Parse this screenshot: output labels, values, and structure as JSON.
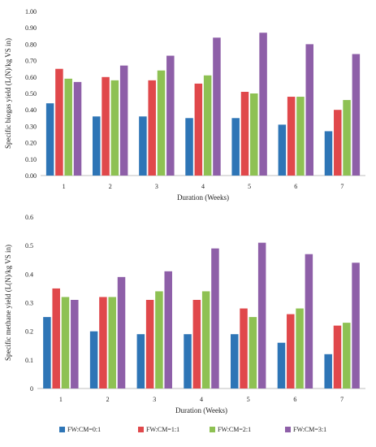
{
  "colors": [
    "#2e75b6",
    "#e0484b",
    "#8ec153",
    "#8e5fa8"
  ],
  "legend": {
    "position": "bottom",
    "entries": [
      "FW:CM=0:1",
      "FW:CM=1:1",
      "FW:CM=2:1",
      "FW:CM=3:1"
    ]
  },
  "chart_data": [
    {
      "type": "bar",
      "xlabel": "Duration (Weeks)",
      "ylabel": "Specific biogas yield (L(N)/kg VS in)",
      "ylim": [
        0,
        1.0
      ],
      "yticks": [
        "0.00",
        "0.10",
        "0.20",
        "0.30",
        "0.40",
        "0.50",
        "0.60",
        "0.70",
        "0.80",
        "0.90",
        "1.00"
      ],
      "categories": [
        "1",
        "2",
        "3",
        "4",
        "5",
        "6",
        "7"
      ],
      "grid": false,
      "series": [
        {
          "name": "FW:CM=0:1",
          "values": [
            0.44,
            0.36,
            0.36,
            0.35,
            0.35,
            0.31,
            0.27
          ]
        },
        {
          "name": "FW:CM=1:1",
          "values": [
            0.65,
            0.6,
            0.58,
            0.56,
            0.51,
            0.48,
            0.4
          ]
        },
        {
          "name": "FW:CM=2:1",
          "values": [
            0.59,
            0.58,
            0.64,
            0.61,
            0.5,
            0.48,
            0.46
          ]
        },
        {
          "name": "FW:CM=3:1",
          "values": [
            0.57,
            0.67,
            0.73,
            0.84,
            0.87,
            0.8,
            0.74
          ]
        }
      ]
    },
    {
      "type": "bar",
      "xlabel": "Duration (Weeks)",
      "ylabel": "Specific methane yield (L(N)/kg VS in)",
      "ylim": [
        0,
        0.6
      ],
      "yticks": [
        "0",
        "0.1",
        "0.2",
        "0.3",
        "0.4",
        "0.5",
        "0.6"
      ],
      "categories": [
        "1",
        "2",
        "3",
        "4",
        "5",
        "6",
        "7"
      ],
      "grid": false,
      "series": [
        {
          "name": "FW:CM=0:1",
          "values": [
            0.25,
            0.2,
            0.19,
            0.19,
            0.19,
            0.16,
            0.12
          ]
        },
        {
          "name": "FW:CM=1:1",
          "values": [
            0.35,
            0.32,
            0.31,
            0.31,
            0.28,
            0.26,
            0.22
          ]
        },
        {
          "name": "FW:CM=2:1",
          "values": [
            0.32,
            0.32,
            0.34,
            0.34,
            0.25,
            0.28,
            0.23
          ]
        },
        {
          "name": "FW:CM=3:1",
          "values": [
            0.31,
            0.39,
            0.41,
            0.49,
            0.51,
            0.47,
            0.44
          ]
        }
      ]
    }
  ]
}
